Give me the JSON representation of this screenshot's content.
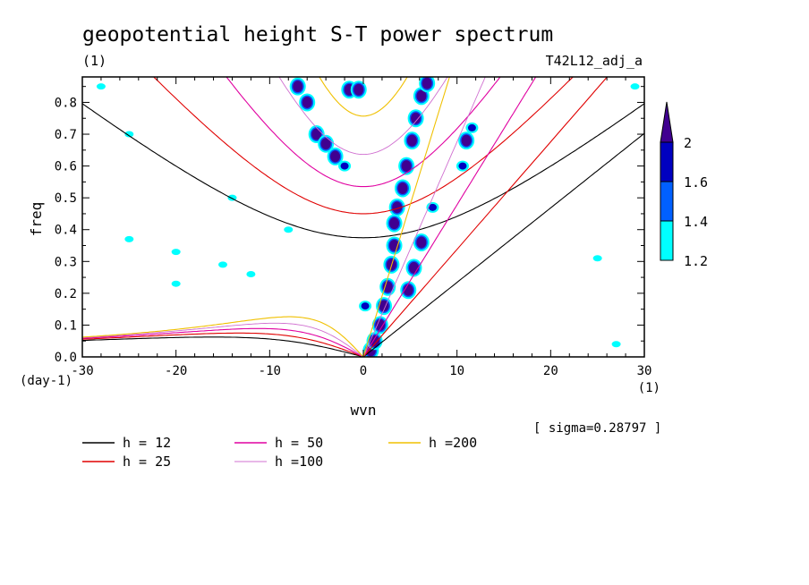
{
  "chart_data": {
    "type": "contour",
    "title": "geopotential height S-T power spectrum",
    "subtitle_left": "(1)",
    "subtitle_right": "T42L12_adj_a",
    "xlabel": "wvn",
    "ylabel": "freq",
    "x_unit": "(1)",
    "y_unit": "(day-1)",
    "xlim": [
      -30,
      30
    ],
    "ylim": [
      0,
      0.88
    ],
    "xticks": [
      "-30",
      "-20",
      "-10",
      "0",
      "10",
      "20",
      "30"
    ],
    "yticks": [
      "0.0",
      "0.1",
      "0.2",
      "0.3",
      "0.4",
      "0.5",
      "0.6",
      "0.7",
      "0.8"
    ],
    "sigma_note": "[ sigma=0.28797 ]",
    "colorbar": {
      "levels": [
        "1.2",
        "1.4",
        "1.6",
        "2"
      ],
      "colors": [
        "#00ffff",
        "#0060ff",
        "#0000c0",
        "#400090"
      ]
    },
    "series": [
      {
        "name": "h = 12",
        "color": "#000000",
        "h": 12
      },
      {
        "name": "h = 25",
        "color": "#e00000",
        "h": 25
      },
      {
        "name": "h = 50",
        "color": "#e000a0",
        "h": 50
      },
      {
        "name": "h =100",
        "color": "#d070d0",
        "h": 100
      },
      {
        "name": "h =200",
        "color": "#f0c000",
        "h": 200
      }
    ],
    "power_blobs": [
      {
        "x": 0.8,
        "y": 0.02,
        "level": 3
      },
      {
        "x": 1.2,
        "y": 0.05,
        "level": 3
      },
      {
        "x": 1.8,
        "y": 0.1,
        "level": 3
      },
      {
        "x": 2.2,
        "y": 0.16,
        "level": 3
      },
      {
        "x": 2.6,
        "y": 0.22,
        "level": 3
      },
      {
        "x": 3.0,
        "y": 0.29,
        "level": 3
      },
      {
        "x": 3.3,
        "y": 0.35,
        "level": 3
      },
      {
        "x": 3.3,
        "y": 0.42,
        "level": 3
      },
      {
        "x": 3.6,
        "y": 0.47,
        "level": 3
      },
      {
        "x": 4.2,
        "y": 0.53,
        "level": 3
      },
      {
        "x": 4.6,
        "y": 0.6,
        "level": 3
      },
      {
        "x": 5.2,
        "y": 0.68,
        "level": 3
      },
      {
        "x": 5.6,
        "y": 0.75,
        "level": 3
      },
      {
        "x": 6.2,
        "y": 0.82,
        "level": 3
      },
      {
        "x": 6.8,
        "y": 0.86,
        "level": 3
      },
      {
        "x": 4.8,
        "y": 0.21,
        "level": 3
      },
      {
        "x": 5.4,
        "y": 0.28,
        "level": 3
      },
      {
        "x": 6.2,
        "y": 0.36,
        "level": 3
      },
      {
        "x": 7.4,
        "y": 0.47,
        "level": 2
      },
      {
        "x": 11.0,
        "y": 0.68,
        "level": 3
      },
      {
        "x": 10.6,
        "y": 0.6,
        "level": 2
      },
      {
        "x": 11.6,
        "y": 0.72,
        "level": 2
      },
      {
        "x": 0.2,
        "y": 0.16,
        "level": 2
      },
      {
        "x": -1.5,
        "y": 0.84,
        "level": 3
      },
      {
        "x": -0.5,
        "y": 0.84,
        "level": 3
      },
      {
        "x": -7.0,
        "y": 0.85,
        "level": 3
      },
      {
        "x": -6.0,
        "y": 0.8,
        "level": 3
      },
      {
        "x": -5.0,
        "y": 0.7,
        "level": 3
      },
      {
        "x": -4.0,
        "y": 0.67,
        "level": 3
      },
      {
        "x": -3.0,
        "y": 0.63,
        "level": 3
      },
      {
        "x": -2.0,
        "y": 0.6,
        "level": 2
      },
      {
        "x": -15.0,
        "y": 0.29,
        "level": 1
      },
      {
        "x": -20.0,
        "y": 0.23,
        "level": 1
      },
      {
        "x": -25.0,
        "y": 0.37,
        "level": 1
      },
      {
        "x": -28.0,
        "y": 0.85,
        "level": 1
      },
      {
        "x": -25.0,
        "y": 0.7,
        "level": 1
      },
      {
        "x": -20.0,
        "y": 0.33,
        "level": 1
      },
      {
        "x": -12.0,
        "y": 0.26,
        "level": 1
      },
      {
        "x": 27.0,
        "y": 0.04,
        "level": 1
      },
      {
        "x": 25.0,
        "y": 0.31,
        "level": 1
      },
      {
        "x": 29.0,
        "y": 0.85,
        "level": 1
      },
      {
        "x": -14.0,
        "y": 0.5,
        "level": 1
      },
      {
        "x": -8.0,
        "y": 0.4,
        "level": 1
      }
    ]
  },
  "legend": {
    "col1": [
      "h = 12",
      "h = 25"
    ],
    "col2": [
      "h = 50",
      "h =100"
    ],
    "col3": [
      "h =200"
    ]
  }
}
